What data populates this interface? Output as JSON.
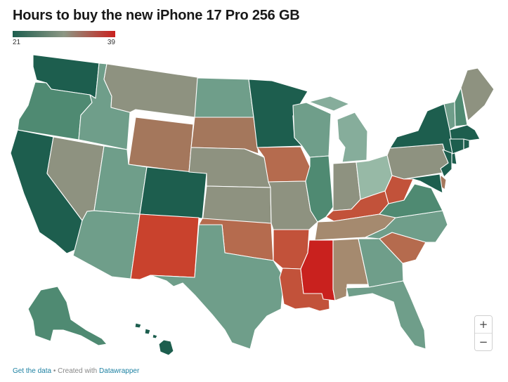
{
  "title": "Hours to buy the new iPhone 17 Pro 256 GB",
  "legend": {
    "min": "21",
    "max": "39",
    "colors": [
      "#1d5e4e",
      "#8c9784",
      "#c9211e"
    ]
  },
  "zoom": {
    "in_label": "+",
    "out_label": "−"
  },
  "footer": {
    "data_link": "Get the data",
    "separator": " • Created with ",
    "brand_link": "Datawrapper"
  },
  "colors": {
    "dark_green": "#1d5e4e",
    "green": "#4f8a72",
    "mid_green": "#6f9e8a",
    "light_green": "#86ad9b",
    "pale_green": "#97b9a6",
    "gray": "#8e9280",
    "tan": "#a58a6f",
    "brown": "#a4775c",
    "orange_brown": "#b56b4e",
    "orange_red": "#c2523a",
    "red_orange": "#c9422d",
    "red": "#c9211e"
  },
  "states": [
    {
      "code": "WA",
      "color": "#1d5e4e"
    },
    {
      "code": "OR",
      "color": "#4f8a72"
    },
    {
      "code": "CA",
      "color": "#1d5e4e"
    },
    {
      "code": "ID",
      "color": "#6f9e8a"
    },
    {
      "code": "NV",
      "color": "#8e9280"
    },
    {
      "code": "MT",
      "color": "#8e9280"
    },
    {
      "code": "WY",
      "color": "#a4775c"
    },
    {
      "code": "UT",
      "color": "#6f9e8a"
    },
    {
      "code": "AZ",
      "color": "#6f9e8a"
    },
    {
      "code": "CO",
      "color": "#1d5e4e"
    },
    {
      "code": "NM",
      "color": "#c9422d"
    },
    {
      "code": "ND",
      "color": "#6f9e8a"
    },
    {
      "code": "SD",
      "color": "#a4775c"
    },
    {
      "code": "NE",
      "color": "#8e9280"
    },
    {
      "code": "KS",
      "color": "#8e9280"
    },
    {
      "code": "OK",
      "color": "#b56b4e"
    },
    {
      "code": "TX",
      "color": "#6f9e8a"
    },
    {
      "code": "MN",
      "color": "#1d5e4e"
    },
    {
      "code": "IA",
      "color": "#b56b4e"
    },
    {
      "code": "MO",
      "color": "#8e9280"
    },
    {
      "code": "AR",
      "color": "#c2523a"
    },
    {
      "code": "LA",
      "color": "#c2523a"
    },
    {
      "code": "WI",
      "color": "#6f9e8a"
    },
    {
      "code": "IL",
      "color": "#4f8a72"
    },
    {
      "code": "MI",
      "color": "#86ad9b"
    },
    {
      "code": "IN",
      "color": "#8e9280"
    },
    {
      "code": "OH",
      "color": "#97b9a6"
    },
    {
      "code": "KY",
      "color": "#c2523a"
    },
    {
      "code": "TN",
      "color": "#a58a6f"
    },
    {
      "code": "MS",
      "color": "#c9211e"
    },
    {
      "code": "AL",
      "color": "#a58a6f"
    },
    {
      "code": "GA",
      "color": "#6f9e8a"
    },
    {
      "code": "FL",
      "color": "#6f9e8a"
    },
    {
      "code": "SC",
      "color": "#b56b4e"
    },
    {
      "code": "NC",
      "color": "#6f9e8a"
    },
    {
      "code": "VA",
      "color": "#4f8a72"
    },
    {
      "code": "WV",
      "color": "#c2523a"
    },
    {
      "code": "PA",
      "color": "#8e9280"
    },
    {
      "code": "NY",
      "color": "#1d5e4e"
    },
    {
      "code": "NJ",
      "color": "#1d5e4e"
    },
    {
      "code": "DE",
      "color": "#a4775c"
    },
    {
      "code": "MD",
      "color": "#1d5e4e"
    },
    {
      "code": "VT",
      "color": "#6f9e8a"
    },
    {
      "code": "NH",
      "color": "#4f8a72"
    },
    {
      "code": "ME",
      "color": "#8e9280"
    },
    {
      "code": "MA",
      "color": "#1d5e4e"
    },
    {
      "code": "CT",
      "color": "#1d5e4e"
    },
    {
      "code": "RI",
      "color": "#1d5e4e"
    },
    {
      "code": "AK",
      "color": "#4f8a72"
    },
    {
      "code": "HI",
      "color": "#1d5e4e"
    }
  ]
}
